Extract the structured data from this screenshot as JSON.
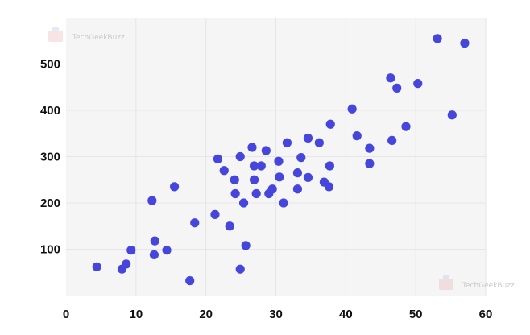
{
  "watermark": {
    "text": "TechGeekBuzz"
  },
  "colors": {
    "point": "#4646dc",
    "plot_bg": "#f5f5f5",
    "grid": "#e6e6e6"
  },
  "chart_data": {
    "type": "scatter",
    "title": "",
    "xlabel": "",
    "ylabel": "",
    "xlim": [
      0,
      60
    ],
    "ylim": [
      0,
      600
    ],
    "xticks": [
      0,
      10,
      20,
      30,
      40,
      50,
      60
    ],
    "yticks": [
      100,
      200,
      300,
      400,
      500
    ],
    "xtick_labels": [
      "0",
      "10",
      "20",
      "30",
      "40",
      "50",
      "60"
    ],
    "ytick_labels": [
      "100",
      "200",
      "300",
      "400",
      "500"
    ],
    "grid": true,
    "legend": "none",
    "series": [
      {
        "points": [
          [
            4.4,
            62
          ],
          [
            8.0,
            57
          ],
          [
            8.6,
            68
          ],
          [
            9.3,
            98
          ],
          [
            12.3,
            205
          ],
          [
            12.6,
            88
          ],
          [
            12.7,
            118
          ],
          [
            14.4,
            98
          ],
          [
            15.5,
            235
          ],
          [
            17.7,
            32
          ],
          [
            18.4,
            157
          ],
          [
            21.3,
            175
          ],
          [
            21.7,
            295
          ],
          [
            22.6,
            270
          ],
          [
            23.4,
            150
          ],
          [
            24.1,
            250
          ],
          [
            24.2,
            220
          ],
          [
            24.9,
            57
          ],
          [
            24.9,
            300
          ],
          [
            25.4,
            200
          ],
          [
            25.7,
            108
          ],
          [
            26.6,
            320
          ],
          [
            26.9,
            280
          ],
          [
            26.9,
            250
          ],
          [
            27.2,
            220
          ],
          [
            27.9,
            280
          ],
          [
            28.6,
            313
          ],
          [
            29.0,
            220
          ],
          [
            29.5,
            230
          ],
          [
            30.4,
            290
          ],
          [
            30.5,
            256
          ],
          [
            31.1,
            200
          ],
          [
            31.6,
            330
          ],
          [
            33.1,
            265
          ],
          [
            33.1,
            230
          ],
          [
            33.6,
            298
          ],
          [
            34.6,
            340
          ],
          [
            34.6,
            255
          ],
          [
            36.2,
            330
          ],
          [
            36.9,
            245
          ],
          [
            37.6,
            235
          ],
          [
            37.7,
            280
          ],
          [
            37.8,
            370
          ],
          [
            40.9,
            403
          ],
          [
            41.6,
            345
          ],
          [
            43.4,
            285
          ],
          [
            43.4,
            318
          ],
          [
            46.4,
            470
          ],
          [
            46.6,
            335
          ],
          [
            47.3,
            448
          ],
          [
            48.6,
            365
          ],
          [
            50.3,
            458
          ],
          [
            53.1,
            555
          ],
          [
            55.2,
            390
          ],
          [
            57.0,
            545
          ]
        ]
      }
    ]
  }
}
